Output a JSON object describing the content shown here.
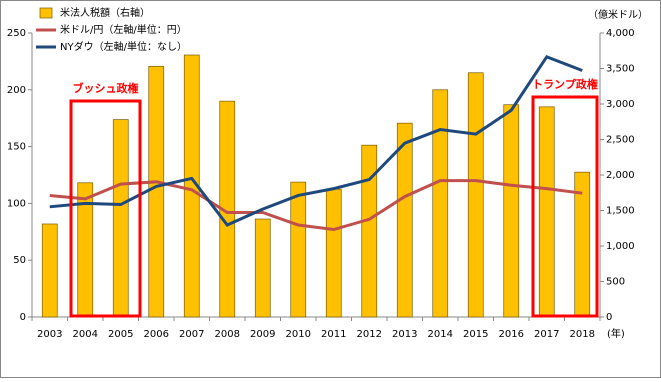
{
  "chart_data": {
    "type": "bar",
    "categories": [
      "2003",
      "2004",
      "2005",
      "2006",
      "2007",
      "2008",
      "2009",
      "2010",
      "2011",
      "2012",
      "2013",
      "2014",
      "2015",
      "2016",
      "2017",
      "2018"
    ],
    "series": [
      {
        "name": "米法人税額（右軸）",
        "type": "bar",
        "axis": "y2",
        "color": "#FFC000",
        "values": [
          1310,
          1890,
          2780,
          3530,
          3690,
          3040,
          1380,
          1900,
          1800,
          2420,
          2730,
          3200,
          3440,
          2990,
          2960,
          2040
        ]
      },
      {
        "name": "米ドル/円（左軸/単位：円）",
        "type": "line",
        "color": "#C0504D",
        "values": [
          107,
          104,
          117,
          119,
          112,
          92,
          92,
          81,
          77,
          86,
          106,
          120,
          120,
          116,
          113,
          109
        ]
      },
      {
        "name": "NYダウ（左軸/単位：なし）",
        "type": "line",
        "color": "#1F497D",
        "values": [
          97,
          100,
          99,
          115,
          122,
          81,
          95,
          107,
          113,
          121,
          153,
          165,
          161,
          182,
          229,
          217
        ]
      }
    ],
    "ylim": [
      0,
      250
    ],
    "yticks": [
      0,
      50,
      100,
      150,
      200,
      250
    ],
    "y2lim": [
      0,
      4000
    ],
    "y2ticks": [
      0,
      500,
      {
        "value": 1000,
        "label": "1,000"
      },
      {
        "value": 1500,
        "label": "1,500"
      },
      {
        "value": 2000,
        "label": "2,000"
      },
      {
        "value": 2500,
        "label": "2,500"
      },
      {
        "value": 3000,
        "label": "3,000"
      },
      {
        "value": 3500,
        "label": "3,500"
      },
      {
        "value": 4000,
        "label": "4,000"
      }
    ],
    "y2_label": "（億米ドル）",
    "x_label": "(年)",
    "annotations": [
      {
        "text": "ブッシュ政権"
      },
      {
        "text": "トランプ政権"
      }
    ],
    "annotation_color": "#FF0000"
  }
}
